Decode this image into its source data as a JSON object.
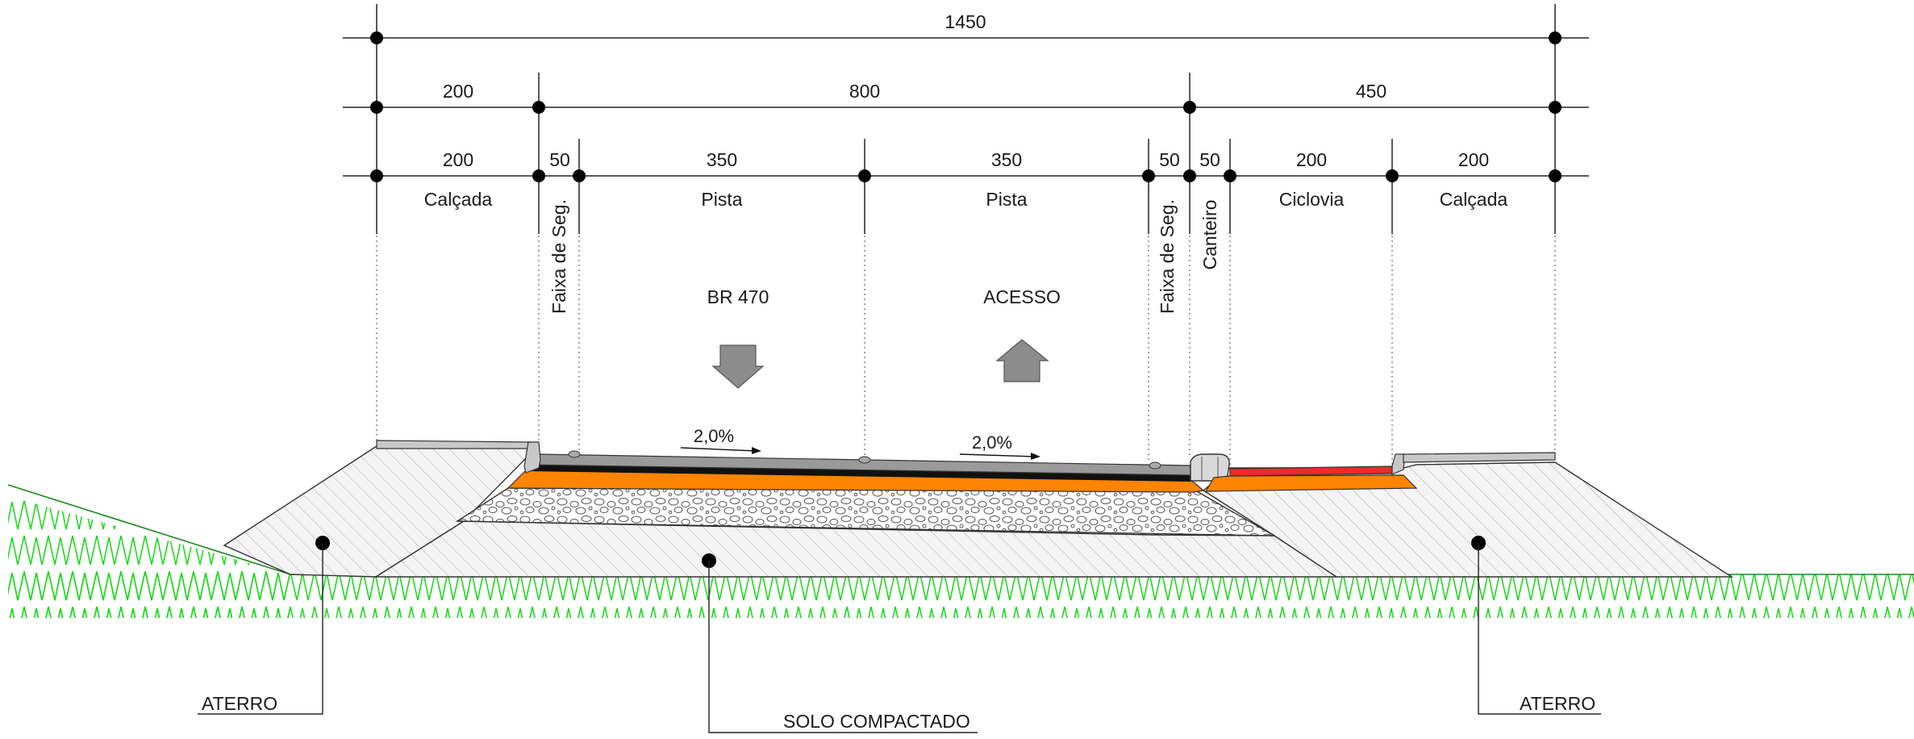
{
  "dimensions": {
    "total": "1450",
    "row2": [
      "200",
      "800",
      "450"
    ],
    "row3": [
      "200",
      "50",
      "350",
      "350",
      "50",
      "50",
      "200",
      "200"
    ]
  },
  "zones": {
    "calcada_left": "Calçada",
    "faixa_left": "Faixa de Seg.",
    "pista_1": "Pista",
    "pista_2": "Pista",
    "faixa_right": "Faixa de Seg.",
    "canteiro": "Canteiro",
    "ciclovia": "Ciclovia",
    "calcada_right": "Calçada"
  },
  "directions": {
    "left": "BR 470",
    "right": "ACESSO"
  },
  "slopes": {
    "left": "2,0%",
    "right": "2,0%"
  },
  "callouts": {
    "aterro_left": "ATERRO",
    "solo": "SOLO COMPACTADO",
    "aterro_right": "ATERRO"
  },
  "colors": {
    "asphalt": "#111111",
    "base_orange": "#ff8400",
    "bike_red": "#ee2a2a",
    "curb_gray": "#c8c8c8",
    "grass": "#1fd81f",
    "arrow_gray": "#8c8c8c"
  }
}
